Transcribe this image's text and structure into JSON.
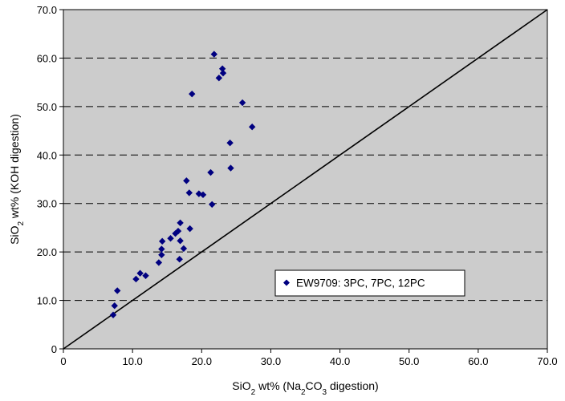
{
  "chart_data": {
    "type": "scatter",
    "title": "",
    "xlabel": {
      "pre": "SiO",
      "sub": "2",
      "mid": " wt% (Na",
      "sub2": "2",
      "mid2": "CO",
      "sub3": "3",
      "post": " digestion)"
    },
    "ylabel": {
      "pre": "SiO",
      "sub": "2",
      "post": " wt% (KOH digestion)"
    },
    "xlim": [
      0,
      70
    ],
    "ylim": [
      0,
      70
    ],
    "x_ticks": [
      "0",
      "10.0",
      "20.0",
      "30.0",
      "40.0",
      "50.0",
      "60.0",
      "70.0"
    ],
    "y_ticks": [
      "0",
      "10.0",
      "20.0",
      "30.0",
      "40.0",
      "50.0",
      "60.0",
      "70.0"
    ],
    "grid": "horizontal-dashed",
    "plot_background": "#cccccc",
    "marker_color": "#000080",
    "legend": {
      "position": "lower-right",
      "label": "EW9709: 3PC, 7PC, 12PC"
    },
    "reference_line": {
      "type": "1:1",
      "from": [
        0,
        0
      ],
      "to": [
        70,
        70
      ]
    },
    "series": [
      {
        "name": "EW9709: 3PC, 7PC, 12PC",
        "points": [
          [
            7.2,
            7.0
          ],
          [
            7.4,
            8.9
          ],
          [
            7.8,
            12.0
          ],
          [
            10.5,
            14.4
          ],
          [
            11.1,
            15.6
          ],
          [
            11.9,
            15.1
          ],
          [
            13.8,
            17.8
          ],
          [
            14.2,
            19.4
          ],
          [
            14.2,
            20.6
          ],
          [
            14.3,
            22.2
          ],
          [
            15.5,
            22.8
          ],
          [
            16.2,
            23.8
          ],
          [
            16.6,
            24.3
          ],
          [
            16.8,
            18.5
          ],
          [
            16.9,
            22.3
          ],
          [
            16.9,
            26.0
          ],
          [
            17.4,
            20.7
          ],
          [
            17.8,
            34.7
          ],
          [
            18.2,
            32.2
          ],
          [
            18.3,
            24.8
          ],
          [
            18.6,
            52.6
          ],
          [
            19.6,
            32.0
          ],
          [
            20.2,
            31.8
          ],
          [
            21.3,
            36.4
          ],
          [
            21.5,
            29.8
          ],
          [
            21.8,
            60.8
          ],
          [
            22.5,
            55.9
          ],
          [
            23.0,
            57.8
          ],
          [
            23.1,
            56.9
          ],
          [
            24.1,
            42.5
          ],
          [
            24.2,
            37.3
          ],
          [
            25.9,
            50.8
          ],
          [
            27.3,
            45.8
          ]
        ]
      }
    ]
  }
}
